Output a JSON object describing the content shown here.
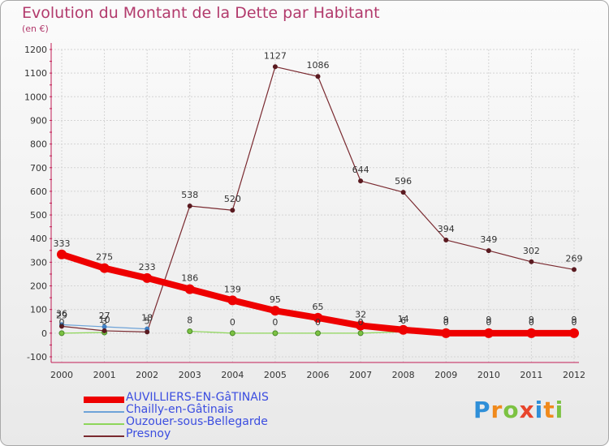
{
  "chart_data": {
    "type": "line",
    "title": "Evolution du Montant de la Dette par Habitant",
    "subtitle": "(en €)",
    "xlabel": "",
    "ylabel": "",
    "ylim": [
      -100,
      1200
    ],
    "yticks": [
      -100,
      0,
      100,
      200,
      300,
      400,
      500,
      600,
      700,
      800,
      900,
      1000,
      1100,
      1200
    ],
    "x": [
      "2000",
      "2001",
      "2002",
      "2003",
      "2004",
      "2005",
      "2006",
      "2007",
      "2008",
      "2009",
      "2010",
      "2011",
      "2012"
    ],
    "series": [
      {
        "name": "AUVILLIERS-EN-GâTINAIS",
        "color": "#ee0000",
        "values": [
          333,
          275,
          233,
          186,
          139,
          95,
          65,
          32,
          14,
          0,
          0,
          0,
          0
        ]
      },
      {
        "name": "Chailly-en-Gâtinais",
        "color": "#6ea3d8",
        "values": [
          36,
          27,
          18,
          null,
          null,
          null,
          null,
          null,
          null,
          null,
          null,
          null,
          null
        ]
      },
      {
        "name": "Ouzouer-sous-Bellegarde",
        "color": "#8ed65a",
        "values": [
          0,
          3,
          null,
          8,
          0,
          0,
          0,
          0,
          6,
          9,
          9,
          9,
          9
        ]
      },
      {
        "name": "Presnoy",
        "color": "#7a2a30",
        "values": [
          29,
          10,
          5,
          538,
          520,
          1127,
          1086,
          644,
          596,
          394,
          349,
          302,
          269
        ]
      }
    ]
  },
  "logo": {
    "p": "P",
    "r": "r",
    "o": "o",
    "x": "x",
    "i1": "i",
    "t": "t",
    "i2": "i"
  }
}
